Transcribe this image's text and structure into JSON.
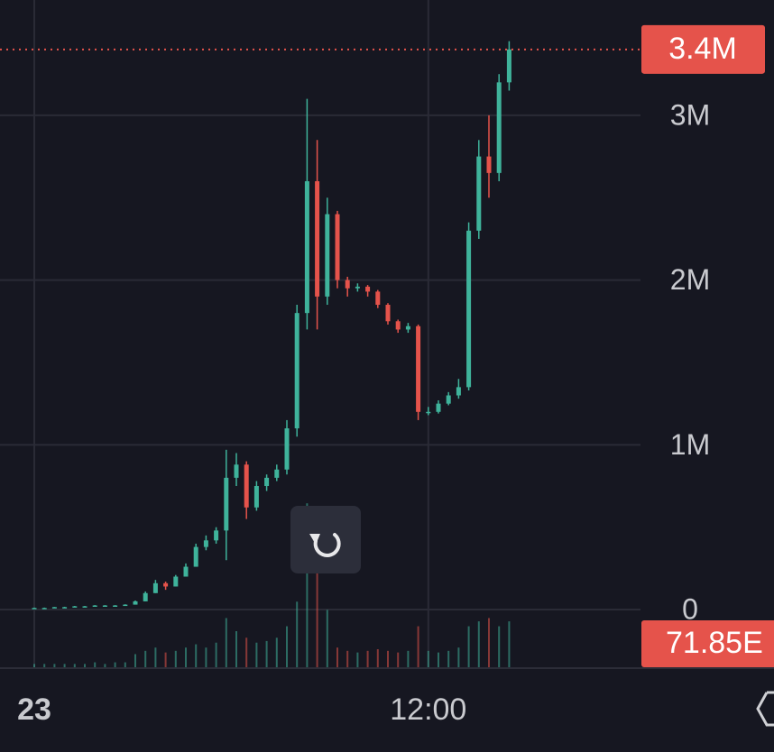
{
  "chart_data": {
    "type": "candlestick",
    "categories": [
      "23",
      null,
      null,
      null,
      null,
      null,
      null,
      null,
      null,
      null,
      null,
      null,
      null,
      null,
      null,
      null,
      null,
      null,
      null,
      null,
      null,
      null,
      null,
      null,
      null,
      null,
      null,
      null,
      null,
      null,
      null,
      null,
      null,
      null,
      null,
      null,
      null,
      null,
      null,
      "12:00",
      null,
      null,
      null,
      null,
      null,
      null,
      null,
      null
    ],
    "open": [
      10000,
      10000,
      10000,
      15000,
      15000,
      20000,
      20000,
      25000,
      25000,
      25000,
      30000,
      50000,
      100000,
      160000,
      140000,
      200000,
      260000,
      380000,
      420000,
      480000,
      800000,
      880000,
      620000,
      750000,
      800000,
      850000,
      1100000,
      1800000,
      2600000,
      1900000,
      2400000,
      2000000,
      1950000,
      1960000,
      1930000,
      1850000,
      1750000,
      1700000,
      1720000,
      1200000,
      1200000,
      1250000,
      1300000,
      1350000,
      2300000,
      2750000,
      2650000,
      3200000
    ],
    "high": [
      12000,
      12000,
      16000,
      17000,
      22000,
      22000,
      27000,
      27000,
      27000,
      32000,
      55000,
      110000,
      180000,
      170000,
      210000,
      280000,
      400000,
      450000,
      500000,
      970000,
      950000,
      900000,
      780000,
      820000,
      880000,
      1150000,
      1850000,
      3100000,
      2850000,
      2500000,
      2420000,
      2020000,
      1980000,
      1970000,
      1940000,
      1860000,
      1760000,
      1740000,
      1730000,
      1230000,
      1270000,
      1320000,
      1400000,
      2350000,
      2850000,
      3000000,
      3250000,
      3450000
    ],
    "low": [
      8000,
      8000,
      10000,
      13000,
      15000,
      18000,
      20000,
      23000,
      23000,
      25000,
      30000,
      50000,
      100000,
      120000,
      140000,
      200000,
      260000,
      360000,
      400000,
      300000,
      750000,
      550000,
      600000,
      720000,
      780000,
      820000,
      1050000,
      1700000,
      1700000,
      1850000,
      1950000,
      1900000,
      1930000,
      1900000,
      1830000,
      1730000,
      1680000,
      1680000,
      1150000,
      1180000,
      1190000,
      1240000,
      1280000,
      1330000,
      2250000,
      2500000,
      2600000,
      3150000
    ],
    "close": [
      10000,
      10000,
      15000,
      15000,
      20000,
      20000,
      25000,
      25000,
      25000,
      30000,
      50000,
      100000,
      160000,
      140000,
      200000,
      260000,
      380000,
      420000,
      480000,
      800000,
      880000,
      620000,
      750000,
      800000,
      850000,
      1100000,
      1800000,
      2600000,
      1900000,
      2400000,
      2000000,
      1950000,
      1960000,
      1930000,
      1850000,
      1750000,
      1700000,
      1720000,
      1200000,
      1200000,
      1250000,
      1300000,
      1350000,
      2300000,
      2750000,
      2650000,
      3200000,
      3400000
    ],
    "volume": [
      2,
      2,
      2,
      2,
      2,
      2,
      3,
      2,
      3,
      3,
      8,
      10,
      12,
      9,
      10,
      12,
      14,
      12,
      15,
      30,
      22,
      18,
      15,
      16,
      18,
      25,
      40,
      100,
      70,
      35,
      12,
      10,
      9,
      10,
      11,
      10,
      9,
      10,
      25,
      10,
      9,
      10,
      12,
      25,
      28,
      30,
      25,
      28
    ],
    "volume_label": "71.85E",
    "up_color": "#3fb39b",
    "down_color": "#e5534b",
    "ylim": [
      -350000,
      3700000
    ],
    "volume_ylim": [
      0,
      110
    ],
    "yticks": [
      {
        "value": 0,
        "label": "0"
      },
      {
        "value": 1000000,
        "label": "1M"
      },
      {
        "value": 2000000,
        "label": "2M"
      },
      {
        "value": 3000000,
        "label": "3M"
      }
    ],
    "last_price": {
      "value": 3400000,
      "label": "3.4M"
    },
    "grid": true
  }
}
